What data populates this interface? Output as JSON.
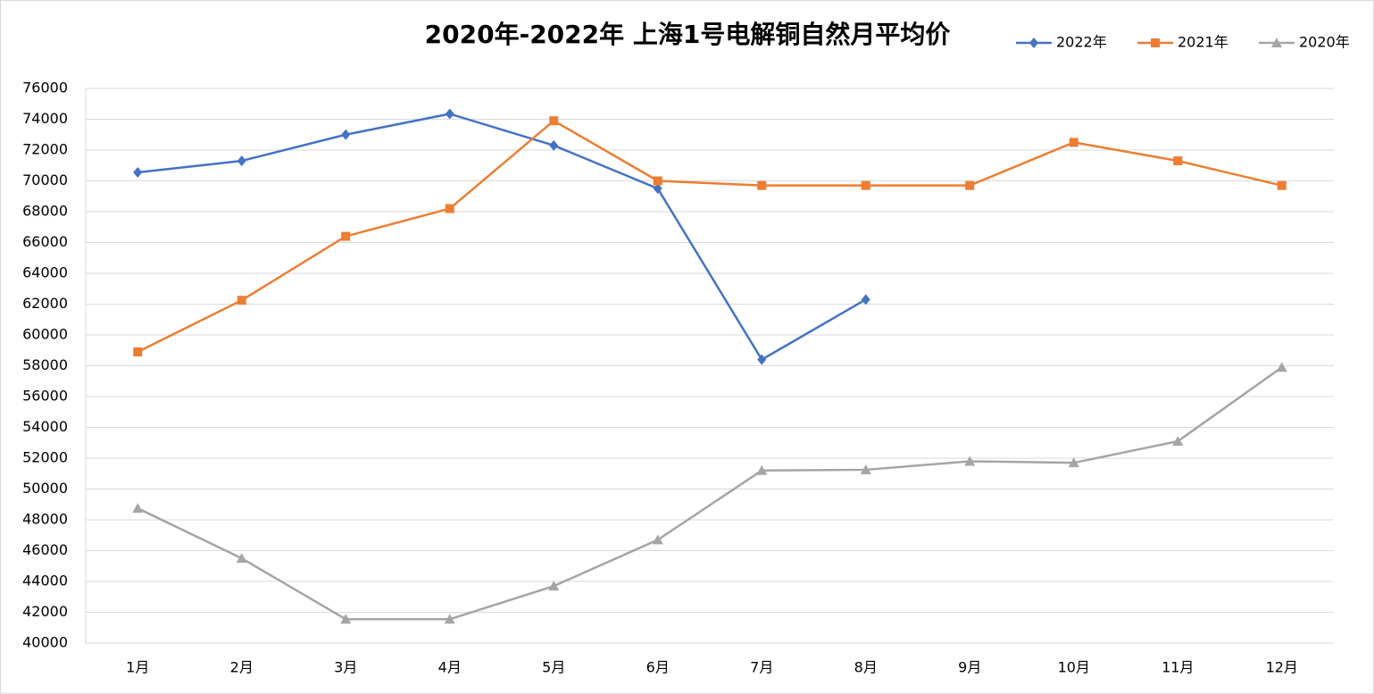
{
  "chart_data": {
    "type": "line",
    "title": "2020年-2022年  上海1号电解铜自然月平均价",
    "categories": [
      "1月",
      "2月",
      "3月",
      "4月",
      "5月",
      "6月",
      "7月",
      "8月",
      "9月",
      "10月",
      "11月",
      "12月"
    ],
    "series": [
      {
        "name": "2022年",
        "color": "#4472c4",
        "marker": "diamond",
        "values": [
          70550,
          71300,
          73000,
          74350,
          72300,
          69500,
          58400,
          62300,
          null,
          null,
          null,
          null
        ]
      },
      {
        "name": "2021年",
        "color": "#ed7d31",
        "marker": "square",
        "values": [
          58900,
          62250,
          66400,
          68200,
          73900,
          70000,
          69700,
          69700,
          69700,
          72500,
          71300,
          69700
        ]
      },
      {
        "name": "2020年",
        "color": "#a5a5a5",
        "marker": "triangle",
        "values": [
          48750,
          45500,
          41550,
          41550,
          43700,
          46700,
          51200,
          51250,
          51800,
          51700,
          53100,
          57900
        ]
      }
    ],
    "ylim": [
      40000,
      76000
    ],
    "yticks": [
      40000,
      42000,
      44000,
      46000,
      48000,
      50000,
      52000,
      54000,
      56000,
      58000,
      60000,
      62000,
      64000,
      66000,
      68000,
      70000,
      72000,
      74000,
      76000
    ],
    "grid": true,
    "legend": "top-right"
  }
}
